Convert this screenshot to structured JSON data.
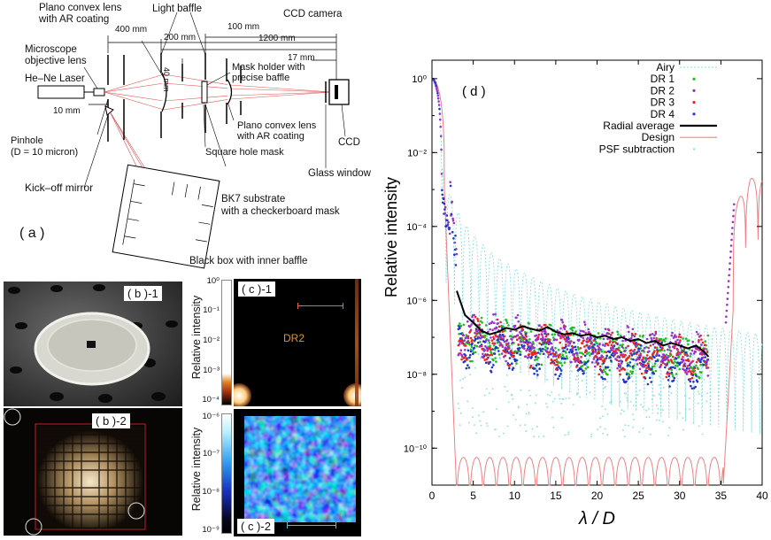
{
  "panel_a": {
    "tag": "( a )",
    "labels": {
      "plano_convex_ar_top": "Plano convex lens\nwith AR coating",
      "light_baffle": "Light baffle",
      "ccd_camera": "CCD camera",
      "microscope": "Microscope\nobjective lens",
      "laser": "He–Ne Laser",
      "mask_holder": "Mask holder with\nprecise baffle",
      "plano_convex_ar_bottom": "Plano convex lens\nwith AR coating",
      "square_hole_mask": "Square hole mask",
      "ccd": "CCD",
      "glass_window": "Glass window",
      "pinhole": "Pinhole\n(D = 10 micron)",
      "kickoff": "Kick–off mirror",
      "bk7": "BK7 substrate\nwith a checkerboard mask",
      "black_box": "Black box with inner baffle"
    },
    "dims": {
      "d400": "400 mm",
      "d200": "200 mm",
      "d100": "100 mm",
      "d1200": "1200 mm",
      "d40": "40 mm",
      "d17": "17 mm",
      "d10": "10 mm"
    }
  },
  "panel_b1": {
    "tag": "( b )-1"
  },
  "panel_b2": {
    "tag": "( b )-2"
  },
  "panel_c1": {
    "tag": "( c )-1",
    "annotation": "DR2",
    "colorbar_label": "Relative intensity",
    "ticks": [
      "10⁰",
      "10⁻¹",
      "10⁻²",
      "10⁻³",
      "10⁻⁴"
    ]
  },
  "panel_c2": {
    "tag": "( c )-2",
    "colorbar_label": "Relative intensity",
    "ticks": [
      "10⁻⁶",
      "10⁻⁷",
      "10⁻⁸",
      "10⁻⁹"
    ]
  },
  "panel_d": {
    "tag": "( d )",
    "legend": [
      "Airy",
      "DR 1",
      "DR 2",
      "DR 3",
      "DR 4",
      "Radial average",
      "Design",
      "PSF subtraction"
    ],
    "colors": {
      "Airy": "#7fdfdf",
      "DR 1": "#22bb22",
      "DR 2": "#9933cc",
      "DR 3": "#ee2222",
      "DR 4": "#2233cc",
      "Radial average": "#000000",
      "Design": "#f08080",
      "PSF subtraction": "#8fe0e0"
    }
  },
  "chart_data": {
    "type": "line",
    "title": "",
    "xlabel": "λ / D",
    "ylabel": "Relative  intensity",
    "xlim": [
      0,
      40
    ],
    "ylim_log10": [
      -11,
      0.5
    ],
    "yscale": "log",
    "x_ticks": [
      "0",
      "5",
      "10",
      "15",
      "20",
      "25",
      "30",
      "35",
      "40"
    ],
    "y_ticks": [
      "10⁰",
      "10⁻²",
      "10⁻⁴",
      "10⁻⁶",
      "10⁻⁸",
      "10⁻¹⁰"
    ],
    "legend_position": "top-right",
    "series": [
      {
        "name": "Radial average",
        "x": [
          3,
          4,
          5,
          6,
          7,
          8,
          9,
          10,
          11,
          12,
          13,
          14,
          15,
          16,
          17,
          18,
          19,
          20,
          21,
          22,
          23,
          24,
          25,
          26,
          27,
          28,
          29,
          30,
          31,
          32,
          33,
          33.5
        ],
        "y": [
          1.8e-06,
          4e-07,
          2.5e-07,
          1.5e-07,
          1.2e-07,
          1.4e-07,
          1.8e-07,
          1.6e-07,
          2e-07,
          1.7e-07,
          1.5e-07,
          1.9e-07,
          1.4e-07,
          1.2e-07,
          1.3e-07,
          1.1e-07,
          1.2e-07,
          1e-07,
          1.1e-07,
          9e-08,
          1e-07,
          8e-08,
          9e-08,
          7e-08,
          8e-08,
          6e-08,
          7e-08,
          6e-08,
          5e-08,
          6e-08,
          4e-08,
          3e-08
        ]
      },
      {
        "name": "Airy",
        "x": [
          0,
          1.22,
          5,
          10,
          20,
          30,
          40
        ],
        "y": [
          1,
          0.0001,
          0.0001,
          2.5e-05,
          4e-06,
          1.3e-06,
          6e-07
        ]
      },
      {
        "name": "Design",
        "x": [
          0,
          1.5,
          2.5,
          3,
          35.5,
          36.5,
          37.5,
          38.5,
          39.5
        ],
        "y": [
          1,
          0.002,
          1e-08,
          1e-11,
          1e-11,
          1e-08,
          0.0001,
          0.003,
          0.002
        ]
      }
    ]
  }
}
